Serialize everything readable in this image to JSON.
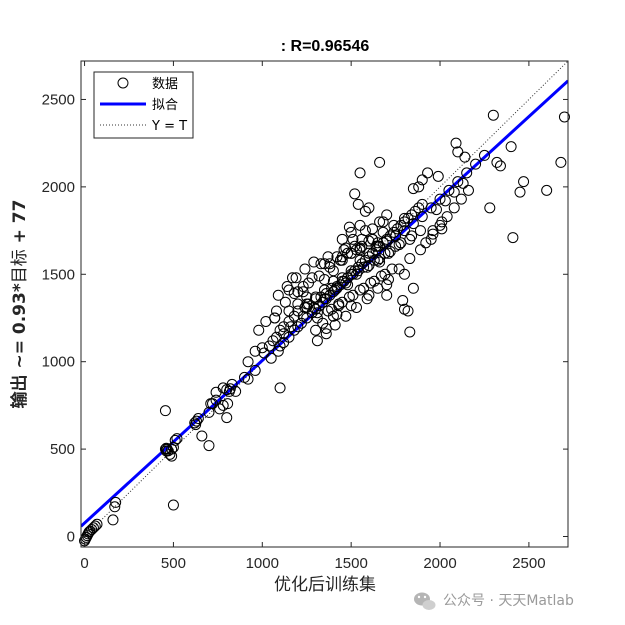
{
  "chart_data": {
    "type": "scatter",
    "title": ": R=0.96546",
    "xlabel": "优化后训练集",
    "ylabel_regular": "输出 ~= 0.93*",
    "ylabel_tail": "目标",
    "ylabel_end": " + 77",
    "xlim": [
      -20,
      2720
    ],
    "ylim": [
      -60,
      2720
    ],
    "xticks": [
      0,
      500,
      1000,
      1500,
      2000,
      2500
    ],
    "yticks": [
      0,
      500,
      1000,
      1500,
      2000,
      2500
    ],
    "grid": false,
    "legend_position": "top-left",
    "legend": [
      {
        "label": "数据",
        "style": "circle"
      },
      {
        "label": "拟合",
        "style": "line"
      },
      {
        "label": "Y = T",
        "style": "dotted"
      }
    ],
    "fit": {
      "slope": 0.93,
      "intercept": 77,
      "color": "#0000ff"
    },
    "identity": {
      "slope": 1,
      "intercept": 0,
      "color": "#333333"
    },
    "series": [
      {
        "name": "数据",
        "x": [
          0,
          5,
          10,
          15,
          20,
          25,
          30,
          40,
          50,
          60,
          70,
          175,
          170,
          160,
          455,
          460,
          465,
          470,
          480,
          490,
          500,
          510,
          520,
          460,
          490,
          500,
          455,
          620,
          630,
          640,
          625,
          660,
          700,
          720,
          740,
          760,
          780,
          800,
          815,
          820,
          830,
          850,
          900,
          920,
          960,
          740,
          780,
          710,
          800,
          700,
          805,
          920,
          1010,
          1040,
          1060,
          1090,
          1100,
          1120,
          1150,
          1180,
          1200,
          1220,
          1250,
          1280,
          1300,
          1320,
          1340,
          1360,
          1380,
          1400,
          1420,
          1440,
          1460,
          1480,
          1500,
          1520,
          1540,
          1560,
          1580,
          1600,
          1620,
          1640,
          1660,
          1680,
          1700,
          1720,
          1740,
          1760,
          1780,
          1800,
          1820,
          1840,
          1860,
          1880,
          1900,
          1050,
          1100,
          1150,
          1200,
          1250,
          1300,
          1350,
          1400,
          1450,
          1500,
          1550,
          1600,
          1650,
          1700,
          1750,
          1800,
          1850,
          1900,
          1120,
          1180,
          1240,
          1300,
          1360,
          1420,
          1480,
          1540,
          1600,
          1660,
          1720,
          1780,
          1840,
          1080,
          1160,
          1230,
          1290,
          1350,
          1410,
          1470,
          1530,
          1590,
          1650,
          1710,
          1770,
          1830,
          1890,
          1200,
          1260,
          1320,
          1380,
          1440,
          1500,
          1560,
          1620,
          1680,
          1740,
          1800,
          1260,
          1330,
          1390,
          1450,
          1510,
          1570,
          1630,
          1690,
          1750,
          1310,
          1370,
          1430,
          1490,
          1550,
          1610,
          1670,
          1730,
          1390,
          1450,
          1510,
          1570,
          1630,
          1690,
          1300,
          1400,
          1500,
          1600,
          1700,
          1800,
          1350,
          1450,
          1550,
          1650,
          1750,
          1500,
          1550,
          1600,
          1450,
          1400,
          1350,
          1250,
          1200,
          1150,
          1480,
          1520,
          1560,
          1620,
          1660,
          1700,
          1450,
          1500,
          1550,
          1380,
          1420,
          1460,
          1330,
          1370,
          1280,
          1230,
          1180,
          1130,
          1080,
          1020,
          1240,
          1290,
          1190,
          1140,
          1090,
          1310,
          1360,
          1410,
          1470,
          1530,
          1590,
          1650,
          1710,
          1770,
          1830,
          1890,
          1950,
          2010,
          1920,
          1960,
          2000,
          2040,
          2080,
          2120,
          2160,
          1950,
          2000,
          2050,
          2100,
          2150,
          2200,
          2250,
          1980,
          2030,
          2080,
          2130,
          1960,
          2010,
          1850,
          1900,
          1930,
          1880,
          1990,
          2300,
          2320,
          2340,
          2280,
          2400,
          2450,
          2470,
          2410,
          2600,
          2680,
          2700,
          1830,
          1850,
          1700,
          1800,
          1820,
          1790,
          1680,
          1660,
          1580,
          1600,
          1540,
          1480,
          1430,
          1420,
          1360,
          1340,
          2090,
          2100,
          2140,
          1550,
          1520,
          1000,
          960,
          1070,
          980,
          1150,
          1250,
          1310,
          1120,
          1170,
          1230,
          1070,
          1100,
          1580,
          1620,
          1640,
          1660,
          1510,
          1530,
          1490,
          1470,
          1440
        ],
        "y": [
          -25,
          -15,
          -5,
          5,
          15,
          25,
          30,
          40,
          50,
          60,
          70,
          195,
          170,
          95,
          720,
          490,
          500,
          490,
          470,
          460,
          510,
          550,
          560,
          505,
          500,
          180,
          500,
          650,
          660,
          675,
          640,
          575,
          520,
          760,
          780,
          730,
          750,
          840,
          830,
          845,
          870,
          830,
          910,
          1000,
          950,
          825,
          850,
          760,
          680,
          710,
          760,
          900,
          1050,
          1090,
          1120,
          1060,
          1090,
          1110,
          1140,
          1180,
          1200,
          1220,
          1250,
          1280,
          1300,
          1320,
          1340,
          1360,
          1380,
          1400,
          1420,
          1440,
          1460,
          1480,
          1500,
          1520,
          1540,
          1560,
          1580,
          1600,
          1620,
          1640,
          1660,
          1680,
          1700,
          1720,
          1740,
          1760,
          1780,
          1800,
          1820,
          1840,
          1860,
          1880,
          1900,
          1020,
          1180,
          1230,
          1290,
          1330,
          1370,
          1410,
          1460,
          1480,
          1520,
          1580,
          1620,
          1660,
          1690,
          1720,
          1750,
          1790,
          1830,
          1200,
          1260,
          1310,
          1360,
          1390,
          1430,
          1480,
          1520,
          1550,
          1590,
          1630,
          1680,
          1720,
          1140,
          1200,
          1260,
          1310,
          1360,
          1410,
          1450,
          1500,
          1540,
          1580,
          1620,
          1670,
          1700,
          1750,
          1400,
          1450,
          1490,
          1540,
          1580,
          1620,
          1660,
          1700,
          1740,
          1780,
          1820,
          1330,
          1370,
          1420,
          1460,
          1500,
          1540,
          1580,
          1620,
          1660,
          1250,
          1290,
          1330,
          1370,
          1410,
          1450,
          1490,
          1530,
          1300,
          1340,
          1380,
          1420,
          1460,
          1500,
          1180,
          1260,
          1320,
          1380,
          1440,
          1500,
          1560,
          1600,
          1640,
          1680,
          1720,
          1620,
          1650,
          1690,
          1580,
          1520,
          1470,
          1370,
          1330,
          1290,
          1620,
          1660,
          1700,
          1760,
          1800,
          1840,
          1700,
          1740,
          1780,
          1560,
          1600,
          1640,
          1560,
          1600,
          1480,
          1430,
          1390,
          1340,
          1290,
          1230,
          1530,
          1570,
          1480,
          1430,
          1380,
          1120,
          1160,
          1210,
          1260,
          1310,
          1360,
          1420,
          1470,
          1530,
          1590,
          1640,
          1700,
          1760,
          1680,
          1730,
          1780,
          1830,
          1880,
          1930,
          1980,
          1880,
          1930,
          1980,
          2030,
          2080,
          2130,
          2180,
          1870,
          1920,
          1970,
          2020,
          1750,
          1800,
          1990,
          2040,
          2080,
          2000,
          2060,
          2410,
          2140,
          2120,
          1880,
          2230,
          1970,
          2030,
          1710,
          1980,
          2140,
          2400,
          1170,
          1420,
          1380,
          1300,
          1290,
          1350,
          1800,
          2140,
          1860,
          1880,
          1900,
          1440,
          1320,
          1270,
          1190,
          1220,
          2250,
          2200,
          2170,
          2080,
          1960,
          1080,
          1060,
          1250,
          1180,
          1410,
          1310,
          1280,
          1160,
          1480,
          1400,
          1250,
          850,
          1750,
          1700,
          1660,
          1570,
          1700,
          1640,
          1770,
          1650,
          1580
        ]
      }
    ]
  },
  "watermark": {
    "icon": "wechat-icon",
    "text": "公众号 · 天天Matlab"
  }
}
